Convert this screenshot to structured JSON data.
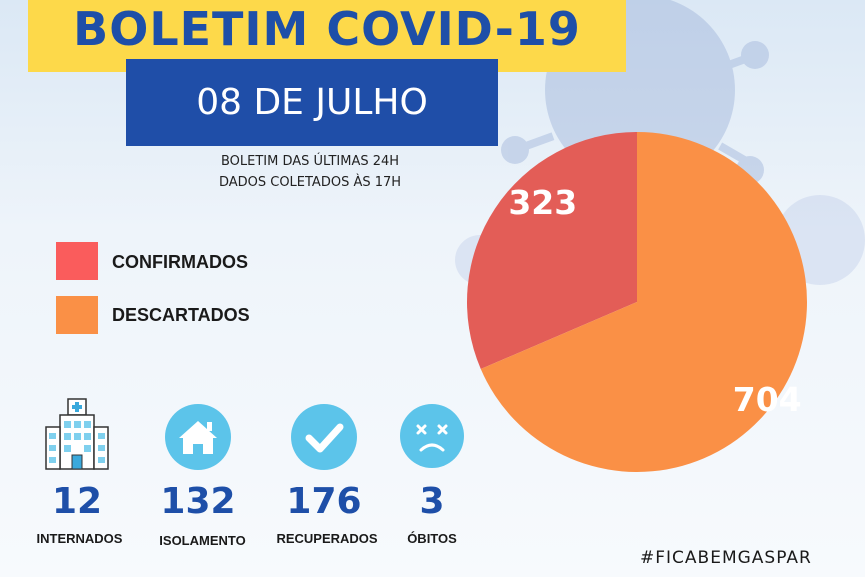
{
  "header": {
    "title": "BOLETIM COVID-19",
    "date": "08 DE JULHO",
    "subtitle_line1": "BOLETIM DAS ÚLTIMAS 24H",
    "subtitle_line2": "DADOS COLETADOS ÀS  17H"
  },
  "colors": {
    "title_band": "#fdd94a",
    "title_text": "#1e4fa8",
    "date_band": "#1f4ea8",
    "confirmed": "#e35d57",
    "discarded": "#fa9046",
    "stat_circle": "#5cc4ea"
  },
  "chart_data": {
    "type": "pie",
    "title": "",
    "slices": [
      {
        "label": "CONFIRMADOS",
        "value": 323,
        "color": "#e35d57"
      },
      {
        "label": "DESCARTADOS",
        "value": 704,
        "color": "#fa9046"
      }
    ],
    "legend_position": "left"
  },
  "stats": [
    {
      "value": "12",
      "label": "INTERNADOS",
      "icon": "hospital-icon"
    },
    {
      "value": "132",
      "label": "ISOLAMENTO",
      "icon": "house-icon"
    },
    {
      "value": "176",
      "label": "RECUPERADOS",
      "icon": "check-icon"
    },
    {
      "value": "3",
      "label": "ÓBITOS",
      "icon": "sad-face-icon"
    }
  ],
  "footer": {
    "hashtag": "#FICABEMGASPAR"
  }
}
